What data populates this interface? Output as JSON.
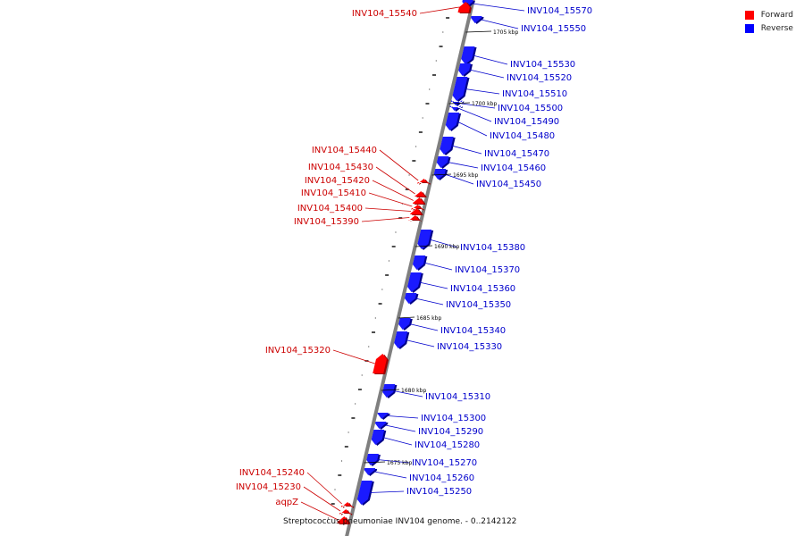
{
  "legend": {
    "forward": {
      "label": "Forward",
      "color": "#ff0000"
    },
    "reverse": {
      "label": "Reverse",
      "color": "#0000ff"
    }
  },
  "caption": "Streptococcus pneumoniae INV104 genome. - 0..2142122",
  "colors": {
    "forward": "#ff0000",
    "reverse": "#1a1aff",
    "backbone": "#7f7f7f",
    "forward_label": "#cc0000",
    "reverse_label": "#0000cc"
  },
  "kbp_marks": [
    {
      "label": "1705 kbp",
      "kbp": 1705
    },
    {
      "label": "1700 kbp",
      "kbp": 1700
    },
    {
      "label": "1695 kbp",
      "kbp": 1695
    },
    {
      "label": "1690 kbp",
      "kbp": 1690
    },
    {
      "label": "1685 kbp",
      "kbp": 1685
    },
    {
      "label": "1680 kbp",
      "kbp": 1680
    },
    {
      "label": "1675 kbp",
      "kbp": 1675
    }
  ],
  "genes": [
    {
      "name": "INV104_15570",
      "strand": "reverse"
    },
    {
      "name": "INV104_15550",
      "strand": "reverse"
    },
    {
      "name": "INV104_15540",
      "strand": "forward"
    },
    {
      "name": "INV104_15530",
      "strand": "reverse"
    },
    {
      "name": "INV104_15520",
      "strand": "reverse"
    },
    {
      "name": "INV104_15510",
      "strand": "reverse"
    },
    {
      "name": "INV104_15500",
      "strand": "reverse"
    },
    {
      "name": "INV104_15490",
      "strand": "reverse"
    },
    {
      "name": "INV104_15480",
      "strand": "reverse"
    },
    {
      "name": "INV104_15470",
      "strand": "reverse"
    },
    {
      "name": "INV104_15460",
      "strand": "reverse"
    },
    {
      "name": "INV104_15450",
      "strand": "reverse"
    },
    {
      "name": "INV104_15440",
      "strand": "forward"
    },
    {
      "name": "INV104_15430",
      "strand": "forward"
    },
    {
      "name": "INV104_15420",
      "strand": "forward"
    },
    {
      "name": "INV104_15410",
      "strand": "forward"
    },
    {
      "name": "INV104_15400",
      "strand": "forward"
    },
    {
      "name": "INV104_15390",
      "strand": "forward"
    },
    {
      "name": "INV104_15380",
      "strand": "reverse"
    },
    {
      "name": "INV104_15370",
      "strand": "reverse"
    },
    {
      "name": "INV104_15360",
      "strand": "reverse"
    },
    {
      "name": "INV104_15350",
      "strand": "reverse"
    },
    {
      "name": "INV104_15340",
      "strand": "reverse"
    },
    {
      "name": "INV104_15330",
      "strand": "reverse"
    },
    {
      "name": "INV104_15320",
      "strand": "forward"
    },
    {
      "name": "INV104_15310",
      "strand": "reverse"
    },
    {
      "name": "INV104_15300",
      "strand": "reverse"
    },
    {
      "name": "INV104_15290",
      "strand": "reverse"
    },
    {
      "name": "INV104_15280",
      "strand": "reverse"
    },
    {
      "name": "INV104_15270",
      "strand": "reverse"
    },
    {
      "name": "INV104_15260",
      "strand": "reverse"
    },
    {
      "name": "INV104_15250",
      "strand": "reverse"
    },
    {
      "name": "INV104_15240",
      "strand": "forward"
    },
    {
      "name": "INV104_15230",
      "strand": "forward"
    },
    {
      "name": "aqpZ",
      "strand": "forward"
    }
  ]
}
